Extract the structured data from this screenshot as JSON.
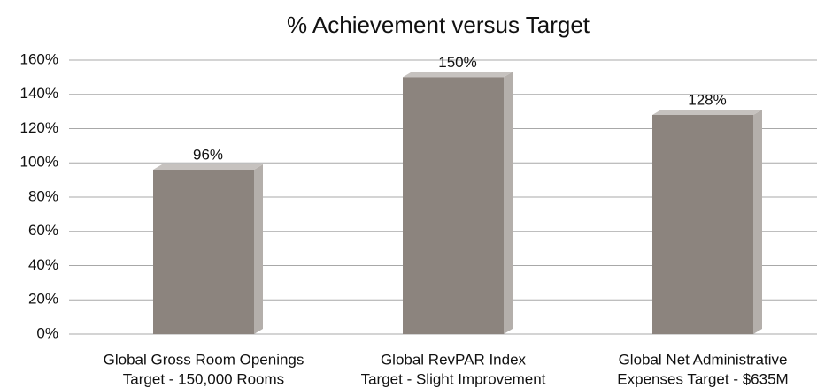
{
  "chart_data": {
    "type": "bar3d",
    "title": "% Achievement versus Target",
    "categories": [
      [
        "Global Gross Room Openings",
        "Target - 150,000 Rooms"
      ],
      [
        "Global RevPAR Index",
        "Target - Slight Improvement"
      ],
      [
        "Global Net Administrative",
        "Expenses Target - $635M"
      ]
    ],
    "values": [
      96,
      150,
      128
    ],
    "value_labels": [
      "96%",
      "150%",
      "128%"
    ],
    "color": "#8c847e",
    "ylim": [
      0,
      160
    ],
    "yticks": [
      {
        "value": 0,
        "label": "0%"
      },
      {
        "value": 20,
        "label": "20%"
      },
      {
        "value": 40,
        "label": "40%"
      },
      {
        "value": 60,
        "label": "60%"
      },
      {
        "value": 80,
        "label": "80%"
      },
      {
        "value": 100,
        "label": "100%"
      },
      {
        "value": 120,
        "label": "120%"
      },
      {
        "value": 140,
        "label": "140%"
      },
      {
        "value": 160,
        "label": "160%"
      }
    ],
    "grid": true
  }
}
